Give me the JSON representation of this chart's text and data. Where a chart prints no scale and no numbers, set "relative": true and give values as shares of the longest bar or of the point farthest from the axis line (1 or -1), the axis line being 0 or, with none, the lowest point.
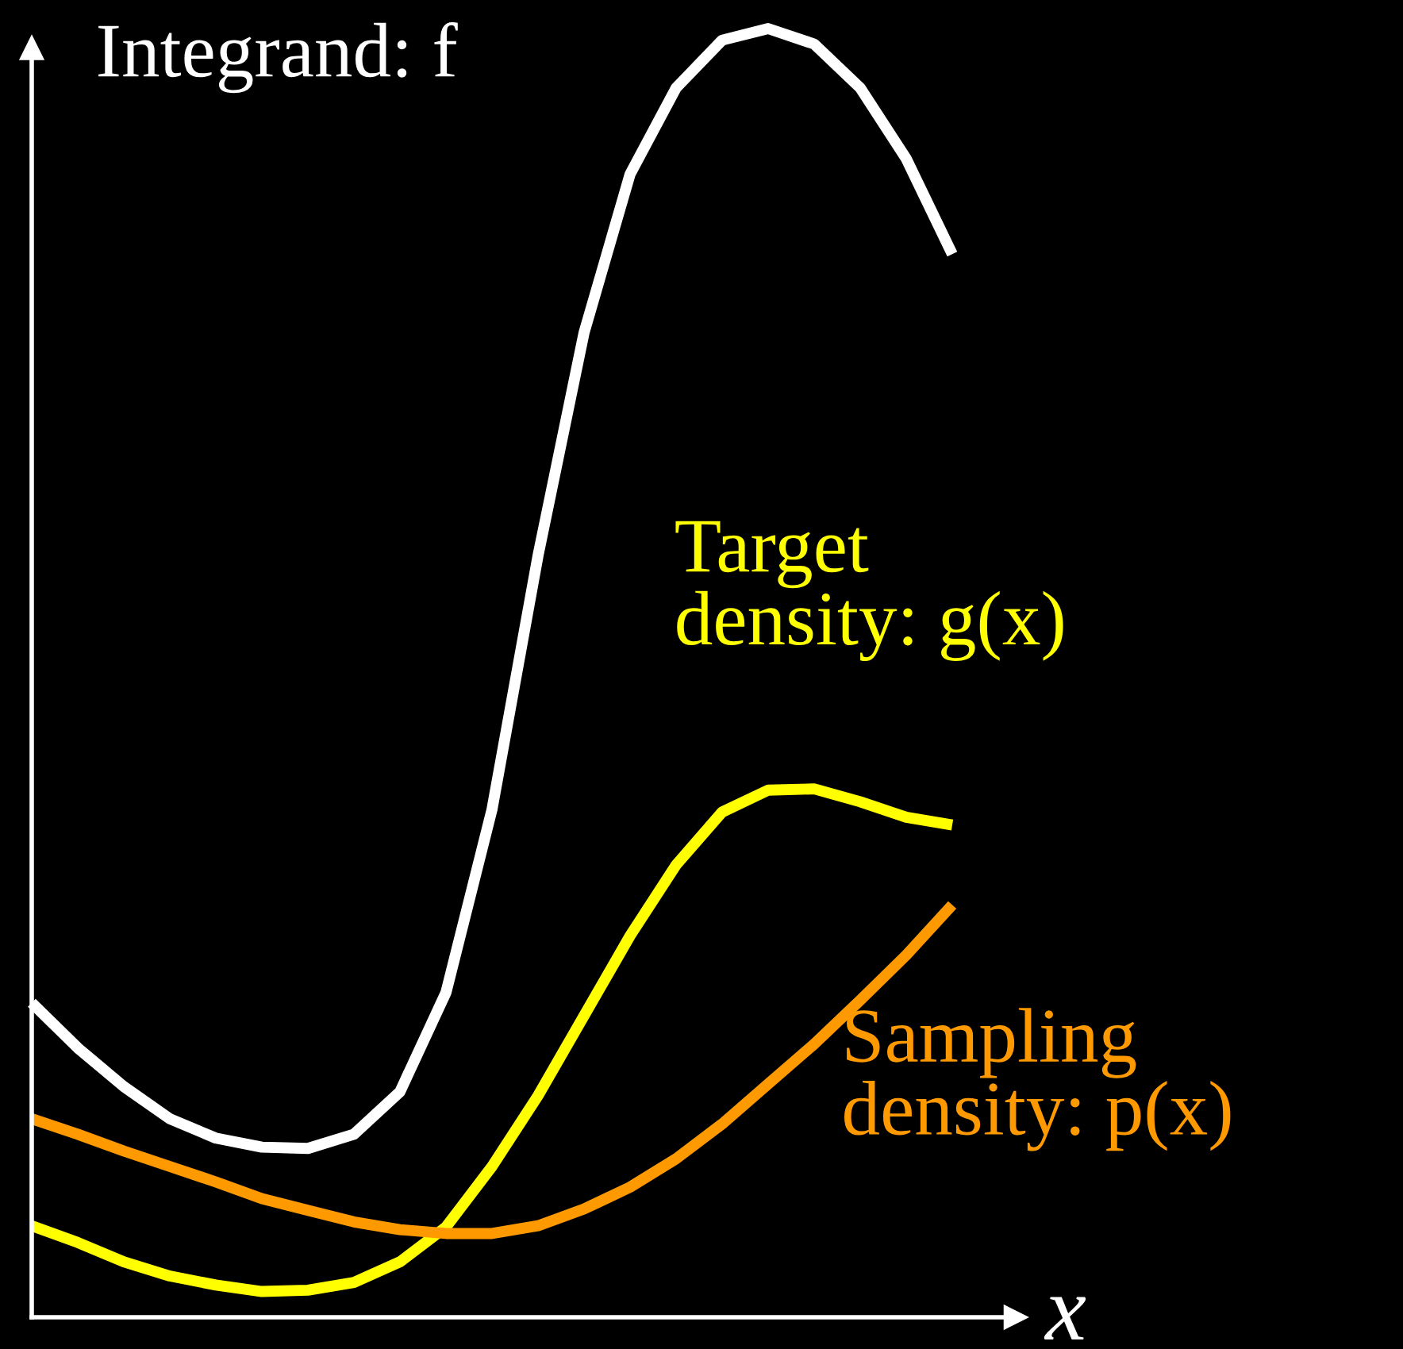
{
  "chart_data": {
    "type": "line",
    "relative": true,
    "xlabel": "x",
    "categories": [
      null,
      null,
      null,
      null,
      null,
      null,
      null,
      null,
      null,
      null,
      null,
      null,
      null,
      null,
      null,
      null,
      null,
      null,
      null,
      null,
      null
    ],
    "series": [
      {
        "name": "Integrand: f",
        "color": "#ffffff",
        "values": [
          0.244,
          0.209,
          0.179,
          0.154,
          0.139,
          0.132,
          0.131,
          0.142,
          0.175,
          0.252,
          0.394,
          0.591,
          0.764,
          0.887,
          0.954,
          0.991,
          1,
          0.988,
          0.954,
          0.899,
          0.825
        ]
      },
      {
        "name": "Target\ndensity: g(x)",
        "color": "#ffff00",
        "values": [
          0.071,
          0.058,
          0.043,
          0.032,
          0.025,
          0.02,
          0.021,
          0.027,
          0.043,
          0.07,
          0.117,
          0.172,
          0.234,
          0.296,
          0.351,
          0.392,
          0.409,
          0.41,
          0.4,
          0.388,
          0.382
        ]
      },
      {
        "name": "Sampling\ndensity: p(x)",
        "color": "#ff9900",
        "values": [
          0.154,
          0.142,
          0.129,
          0.117,
          0.105,
          0.092,
          0.083,
          0.074,
          0.068,
          0.065,
          0.065,
          0.071,
          0.084,
          0.101,
          0.123,
          0.15,
          0.181,
          0.212,
          0.246,
          0.281,
          0.32
        ]
      }
    ]
  }
}
